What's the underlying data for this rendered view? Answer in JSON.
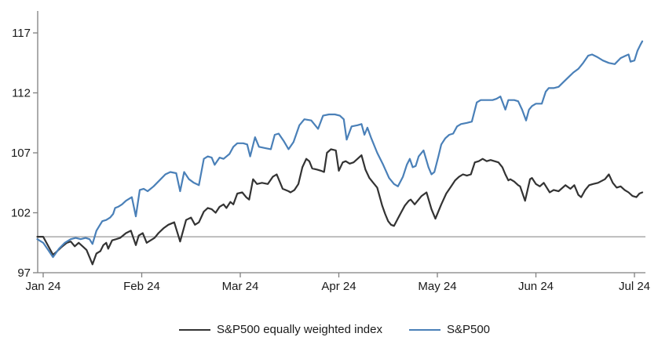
{
  "chart_data": {
    "type": "line",
    "title": "",
    "xlabel": "",
    "ylabel": "",
    "x_axis": {
      "tick_labels": [
        "Jan 24",
        "Feb 24",
        "Mar 24",
        "Apr 24",
        "May 24",
        "Jun 24",
        "Jul 24"
      ],
      "tick_positions_months": [
        0,
        1,
        2,
        3,
        4,
        5,
        6
      ]
    },
    "y_axis": {
      "ticks": [
        97,
        102,
        107,
        112,
        117
      ],
      "range": [
        97,
        117
      ]
    },
    "reference_line": {
      "value": 100
    },
    "grid": "off",
    "legend_position": "bottom-center",
    "series": [
      {
        "name": "S&P500 equally weighted index",
        "color": "#333333",
        "points": [
          [
            -0.06,
            100.0
          ],
          [
            0.0,
            100.0
          ],
          [
            0.06,
            99.1
          ],
          [
            0.1,
            98.5
          ],
          [
            0.13,
            98.7
          ],
          [
            0.18,
            99.1
          ],
          [
            0.24,
            99.5
          ],
          [
            0.28,
            99.6
          ],
          [
            0.32,
            99.2
          ],
          [
            0.36,
            99.5
          ],
          [
            0.4,
            99.2
          ],
          [
            0.44,
            98.9
          ],
          [
            0.47,
            98.3
          ],
          [
            0.5,
            97.7
          ],
          [
            0.54,
            98.6
          ],
          [
            0.58,
            98.8
          ],
          [
            0.61,
            99.3
          ],
          [
            0.64,
            99.5
          ],
          [
            0.66,
            99.0
          ],
          [
            0.7,
            99.7
          ],
          [
            0.74,
            99.8
          ],
          [
            0.78,
            99.9
          ],
          [
            0.84,
            100.3
          ],
          [
            0.89,
            100.5
          ],
          [
            0.94,
            99.3
          ],
          [
            0.97,
            100.1
          ],
          [
            1.01,
            100.3
          ],
          [
            1.05,
            99.5
          ],
          [
            1.09,
            99.7
          ],
          [
            1.13,
            99.9
          ],
          [
            1.17,
            100.3
          ],
          [
            1.22,
            100.7
          ],
          [
            1.27,
            101.0
          ],
          [
            1.33,
            101.2
          ],
          [
            1.39,
            99.6
          ],
          [
            1.45,
            101.4
          ],
          [
            1.5,
            101.6
          ],
          [
            1.54,
            101.0
          ],
          [
            1.58,
            101.2
          ],
          [
            1.63,
            102.1
          ],
          [
            1.67,
            102.4
          ],
          [
            1.71,
            102.3
          ],
          [
            1.75,
            102.0
          ],
          [
            1.79,
            102.5
          ],
          [
            1.83,
            102.7
          ],
          [
            1.86,
            102.4
          ],
          [
            1.9,
            102.9
          ],
          [
            1.93,
            102.7
          ],
          [
            1.97,
            103.6
          ],
          [
            2.02,
            103.7
          ],
          [
            2.06,
            103.3
          ],
          [
            2.09,
            103.1
          ],
          [
            2.13,
            104.8
          ],
          [
            2.17,
            104.4
          ],
          [
            2.22,
            104.5
          ],
          [
            2.28,
            104.4
          ],
          [
            2.33,
            105.0
          ],
          [
            2.37,
            105.2
          ],
          [
            2.43,
            104.0
          ],
          [
            2.49,
            103.8
          ],
          [
            2.51,
            103.7
          ],
          [
            2.55,
            103.9
          ],
          [
            2.59,
            104.4
          ],
          [
            2.63,
            105.8
          ],
          [
            2.67,
            106.5
          ],
          [
            2.7,
            106.3
          ],
          [
            2.73,
            105.7
          ],
          [
            2.78,
            105.6
          ],
          [
            2.82,
            105.5
          ],
          [
            2.85,
            105.4
          ],
          [
            2.88,
            107.0
          ],
          [
            2.92,
            107.3
          ],
          [
            2.97,
            107.2
          ],
          [
            3.0,
            105.5
          ],
          [
            3.04,
            106.2
          ],
          [
            3.07,
            106.3
          ],
          [
            3.11,
            106.1
          ],
          [
            3.15,
            106.2
          ],
          [
            3.19,
            106.5
          ],
          [
            3.23,
            106.8
          ],
          [
            3.27,
            105.6
          ],
          [
            3.31,
            104.9
          ],
          [
            3.35,
            104.5
          ],
          [
            3.39,
            104.1
          ],
          [
            3.44,
            102.6
          ],
          [
            3.47,
            101.9
          ],
          [
            3.5,
            101.3
          ],
          [
            3.53,
            101.0
          ],
          [
            3.56,
            100.9
          ],
          [
            3.63,
            102.0
          ],
          [
            3.67,
            102.6
          ],
          [
            3.71,
            103.0
          ],
          [
            3.73,
            103.1
          ],
          [
            3.77,
            102.7
          ],
          [
            3.84,
            103.4
          ],
          [
            3.89,
            103.7
          ],
          [
            3.94,
            102.3
          ],
          [
            3.98,
            101.5
          ],
          [
            4.04,
            102.7
          ],
          [
            4.09,
            103.6
          ],
          [
            4.14,
            104.2
          ],
          [
            4.18,
            104.7
          ],
          [
            4.22,
            105.0
          ],
          [
            4.26,
            105.2
          ],
          [
            4.3,
            105.1
          ],
          [
            4.34,
            105.2
          ],
          [
            4.38,
            106.2
          ],
          [
            4.42,
            106.3
          ],
          [
            4.46,
            106.5
          ],
          [
            4.5,
            106.3
          ],
          [
            4.54,
            106.4
          ],
          [
            4.58,
            106.3
          ],
          [
            4.62,
            106.2
          ],
          [
            4.66,
            105.8
          ],
          [
            4.69,
            105.2
          ],
          [
            4.72,
            104.7
          ],
          [
            4.74,
            104.8
          ],
          [
            4.78,
            104.6
          ],
          [
            4.82,
            104.3
          ],
          [
            4.84,
            104.2
          ],
          [
            4.89,
            103.0
          ],
          [
            4.94,
            104.8
          ],
          [
            4.96,
            104.9
          ],
          [
            5.0,
            104.4
          ],
          [
            5.04,
            104.2
          ],
          [
            5.08,
            104.5
          ],
          [
            5.14,
            103.7
          ],
          [
            5.18,
            103.9
          ],
          [
            5.23,
            103.8
          ],
          [
            5.3,
            104.3
          ],
          [
            5.35,
            104.0
          ],
          [
            5.39,
            104.3
          ],
          [
            5.43,
            103.5
          ],
          [
            5.46,
            103.3
          ],
          [
            5.5,
            103.9
          ],
          [
            5.54,
            104.3
          ],
          [
            5.58,
            104.4
          ],
          [
            5.63,
            104.5
          ],
          [
            5.7,
            104.8
          ],
          [
            5.74,
            105.2
          ],
          [
            5.78,
            104.5
          ],
          [
            5.82,
            104.1
          ],
          [
            5.86,
            104.2
          ],
          [
            5.9,
            103.9
          ],
          [
            5.94,
            103.7
          ],
          [
            5.98,
            103.4
          ],
          [
            6.02,
            103.3
          ],
          [
            6.05,
            103.6
          ],
          [
            6.08,
            103.7
          ]
        ]
      },
      {
        "name": "S&P500",
        "color": "#4a80b8",
        "points": [
          [
            -0.06,
            99.8
          ],
          [
            0.0,
            99.5
          ],
          [
            0.05,
            98.9
          ],
          [
            0.1,
            98.3
          ],
          [
            0.16,
            99.0
          ],
          [
            0.22,
            99.5
          ],
          [
            0.28,
            99.8
          ],
          [
            0.33,
            99.9
          ],
          [
            0.38,
            99.8
          ],
          [
            0.43,
            99.9
          ],
          [
            0.47,
            99.8
          ],
          [
            0.5,
            99.4
          ],
          [
            0.54,
            100.5
          ],
          [
            0.57,
            100.9
          ],
          [
            0.6,
            101.3
          ],
          [
            0.64,
            101.4
          ],
          [
            0.68,
            101.6
          ],
          [
            0.71,
            101.9
          ],
          [
            0.73,
            102.4
          ],
          [
            0.76,
            102.5
          ],
          [
            0.8,
            102.7
          ],
          [
            0.84,
            103.0
          ],
          [
            0.88,
            103.2
          ],
          [
            0.9,
            103.3
          ],
          [
            0.94,
            101.7
          ],
          [
            0.98,
            103.9
          ],
          [
            1.02,
            104.0
          ],
          [
            1.06,
            103.8
          ],
          [
            1.12,
            104.2
          ],
          [
            1.18,
            104.7
          ],
          [
            1.24,
            105.2
          ],
          [
            1.29,
            105.4
          ],
          [
            1.35,
            105.3
          ],
          [
            1.39,
            103.8
          ],
          [
            1.43,
            105.4
          ],
          [
            1.48,
            104.8
          ],
          [
            1.53,
            104.5
          ],
          [
            1.58,
            104.3
          ],
          [
            1.63,
            106.5
          ],
          [
            1.67,
            106.7
          ],
          [
            1.71,
            106.6
          ],
          [
            1.74,
            106.0
          ],
          [
            1.79,
            106.6
          ],
          [
            1.83,
            106.5
          ],
          [
            1.89,
            106.9
          ],
          [
            1.93,
            107.5
          ],
          [
            1.97,
            107.8
          ],
          [
            2.03,
            107.8
          ],
          [
            2.07,
            107.7
          ],
          [
            2.1,
            106.7
          ],
          [
            2.15,
            108.3
          ],
          [
            2.19,
            107.5
          ],
          [
            2.25,
            107.4
          ],
          [
            2.31,
            107.3
          ],
          [
            2.35,
            108.5
          ],
          [
            2.39,
            108.6
          ],
          [
            2.44,
            108.0
          ],
          [
            2.49,
            107.3
          ],
          [
            2.54,
            107.9
          ],
          [
            2.6,
            109.3
          ],
          [
            2.65,
            109.8
          ],
          [
            2.72,
            109.7
          ],
          [
            2.79,
            109.0
          ],
          [
            2.84,
            110.1
          ],
          [
            2.9,
            110.2
          ],
          [
            2.96,
            110.2
          ],
          [
            3.01,
            110.1
          ],
          [
            3.05,
            109.8
          ],
          [
            3.08,
            108.1
          ],
          [
            3.13,
            109.2
          ],
          [
            3.19,
            109.3
          ],
          [
            3.23,
            109.4
          ],
          [
            3.26,
            108.5
          ],
          [
            3.29,
            109.1
          ],
          [
            3.33,
            108.2
          ],
          [
            3.39,
            107.0
          ],
          [
            3.45,
            106.0
          ],
          [
            3.51,
            104.9
          ],
          [
            3.56,
            104.4
          ],
          [
            3.6,
            104.2
          ],
          [
            3.65,
            105.0
          ],
          [
            3.69,
            106.0
          ],
          [
            3.72,
            106.5
          ],
          [
            3.75,
            105.8
          ],
          [
            3.78,
            105.9
          ],
          [
            3.81,
            106.7
          ],
          [
            3.86,
            107.2
          ],
          [
            3.91,
            105.8
          ],
          [
            3.94,
            105.2
          ],
          [
            3.97,
            105.4
          ],
          [
            4.01,
            106.7
          ],
          [
            4.04,
            107.7
          ],
          [
            4.08,
            108.2
          ],
          [
            4.12,
            108.5
          ],
          [
            4.16,
            108.6
          ],
          [
            4.2,
            109.2
          ],
          [
            4.24,
            109.4
          ],
          [
            4.3,
            109.5
          ],
          [
            4.35,
            109.6
          ],
          [
            4.4,
            111.2
          ],
          [
            4.44,
            111.4
          ],
          [
            4.5,
            111.4
          ],
          [
            4.56,
            111.4
          ],
          [
            4.6,
            111.5
          ],
          [
            4.64,
            111.7
          ],
          [
            4.69,
            110.6
          ],
          [
            4.72,
            111.4
          ],
          [
            4.78,
            111.4
          ],
          [
            4.82,
            111.3
          ],
          [
            4.86,
            110.6
          ],
          [
            4.9,
            109.7
          ],
          [
            4.93,
            110.6
          ],
          [
            4.96,
            110.9
          ],
          [
            5.0,
            111.1
          ],
          [
            5.06,
            111.1
          ],
          [
            5.1,
            112.1
          ],
          [
            5.13,
            112.4
          ],
          [
            5.18,
            112.4
          ],
          [
            5.23,
            112.5
          ],
          [
            5.28,
            112.9
          ],
          [
            5.33,
            113.3
          ],
          [
            5.38,
            113.7
          ],
          [
            5.43,
            114.0
          ],
          [
            5.48,
            114.5
          ],
          [
            5.53,
            115.1
          ],
          [
            5.57,
            115.2
          ],
          [
            5.62,
            115.0
          ],
          [
            5.68,
            114.7
          ],
          [
            5.74,
            114.5
          ],
          [
            5.8,
            114.4
          ],
          [
            5.86,
            114.9
          ],
          [
            5.91,
            115.1
          ],
          [
            5.94,
            115.2
          ],
          [
            5.96,
            114.6
          ],
          [
            6.0,
            114.7
          ],
          [
            6.03,
            115.5
          ],
          [
            6.06,
            116.0
          ],
          [
            6.08,
            116.3
          ]
        ]
      }
    ]
  },
  "colors": {
    "axis": "#808080",
    "reference_line": "#999999",
    "background": "#ffffff",
    "label_text": "#1a1a1a"
  },
  "legend": {
    "items": [
      {
        "label": "S&P500 equally weighted index"
      },
      {
        "label": "S&P500"
      }
    ]
  }
}
